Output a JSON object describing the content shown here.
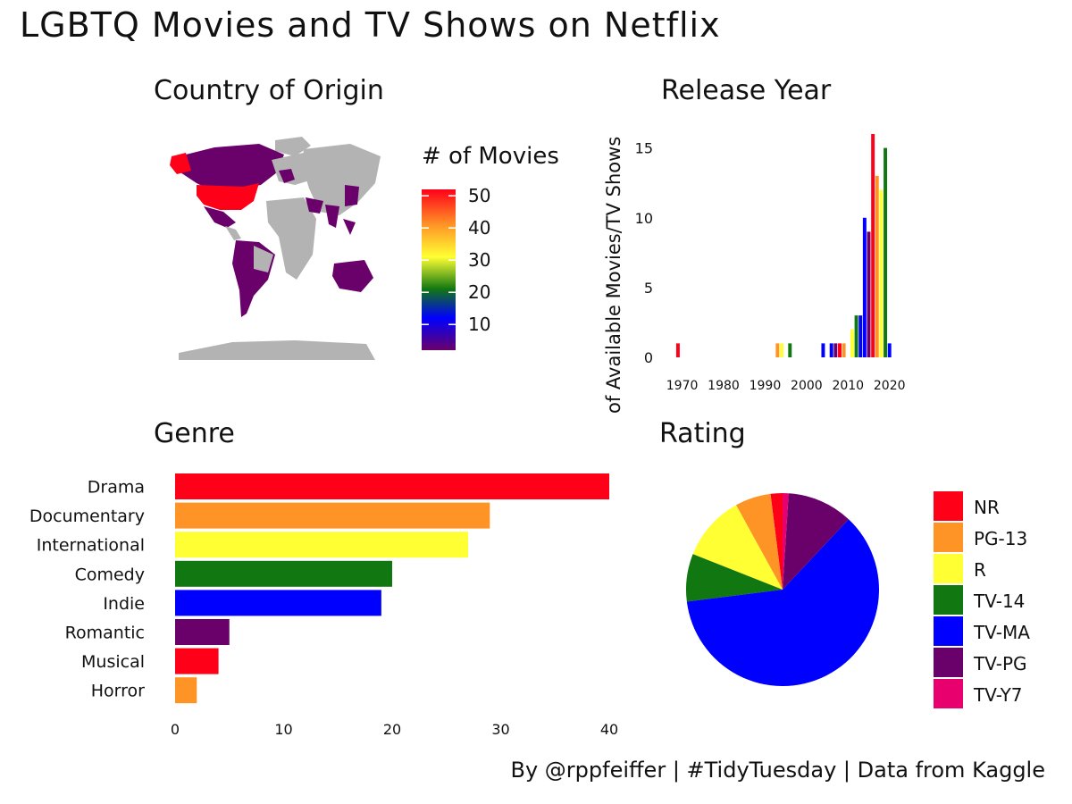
{
  "title": "LGBTQ Movies and TV Shows on Netflix",
  "caption": "By @rppfeiffer | #TidyTuesday | Data from Kaggle",
  "colors": {
    "red": "#ff0019",
    "orange": "#ff9426",
    "yellow": "#ffff33",
    "green": "#117711",
    "blue": "#0000ff",
    "purple": "#6a006a",
    "pink": "#e8006e",
    "gray": "#b3b3b3"
  },
  "map": {
    "title": "Country of Origin",
    "legend_title": "# of Movies",
    "legend_ticks": [
      "50",
      "40",
      "30",
      "20",
      "10"
    ],
    "legend_range": [
      2,
      52
    ]
  },
  "chart_data": [
    {
      "type": "bar",
      "title": "Release Year",
      "ylabel": "# of Available Movies/TV Shows",
      "xlim": [
        1966,
        2022
      ],
      "ylim": [
        0,
        16
      ],
      "xticks": [
        "1970",
        "1980",
        "1990",
        "2000",
        "2010",
        "2020"
      ],
      "yticks": [
        "0",
        "5",
        "10",
        "15"
      ],
      "bars": [
        {
          "x": 1969,
          "y": 1,
          "color": "red"
        },
        {
          "x": 1993,
          "y": 1,
          "color": "orange"
        },
        {
          "x": 1994,
          "y": 1,
          "color": "yellow"
        },
        {
          "x": 1996,
          "y": 1,
          "color": "green"
        },
        {
          "x": 2004,
          "y": 1,
          "color": "blue"
        },
        {
          "x": 2006,
          "y": 1,
          "color": "blue"
        },
        {
          "x": 2007,
          "y": 1,
          "color": "purple"
        },
        {
          "x": 2008,
          "y": 1,
          "color": "red"
        },
        {
          "x": 2009,
          "y": 1,
          "color": "orange"
        },
        {
          "x": 2011,
          "y": 2,
          "color": "yellow"
        },
        {
          "x": 2012,
          "y": 3,
          "color": "green"
        },
        {
          "x": 2013,
          "y": 3,
          "color": "blue"
        },
        {
          "x": 2014,
          "y": 10,
          "color": "blue"
        },
        {
          "x": 2015,
          "y": 9,
          "color": "purple"
        },
        {
          "x": 2016,
          "y": 16,
          "color": "red"
        },
        {
          "x": 2017,
          "y": 13,
          "color": "orange"
        },
        {
          "x": 2018,
          "y": 12,
          "color": "yellow"
        },
        {
          "x": 2019,
          "y": 15,
          "color": "green"
        },
        {
          "x": 2020,
          "y": 1,
          "color": "blue"
        }
      ]
    },
    {
      "type": "bar",
      "orientation": "horizontal",
      "title": "Genre",
      "categories": [
        "Drama",
        "Documentary",
        "International",
        "Comedy",
        "Indie",
        "Romantic",
        "Musical",
        "Horror"
      ],
      "values": [
        40,
        29,
        27,
        20,
        19,
        5,
        4,
        2
      ],
      "colors": [
        "red",
        "orange",
        "yellow",
        "green",
        "blue",
        "purple",
        "red",
        "orange"
      ],
      "xlim": [
        0,
        41
      ],
      "xticks": [
        "0",
        "10",
        "20",
        "30",
        "40"
      ]
    },
    {
      "type": "pie",
      "title": "Rating",
      "slices": [
        {
          "label": "NR",
          "value": 2,
          "color": "red"
        },
        {
          "label": "PG-13",
          "value": 6,
          "color": "orange"
        },
        {
          "label": "R",
          "value": 11,
          "color": "yellow"
        },
        {
          "label": "TV-14",
          "value": 8,
          "color": "green"
        },
        {
          "label": "TV-MA",
          "value": 61,
          "color": "blue"
        },
        {
          "label": "TV-PG",
          "value": 11,
          "color": "purple"
        },
        {
          "label": "TV-Y7",
          "value": 1,
          "color": "pink"
        }
      ]
    }
  ]
}
